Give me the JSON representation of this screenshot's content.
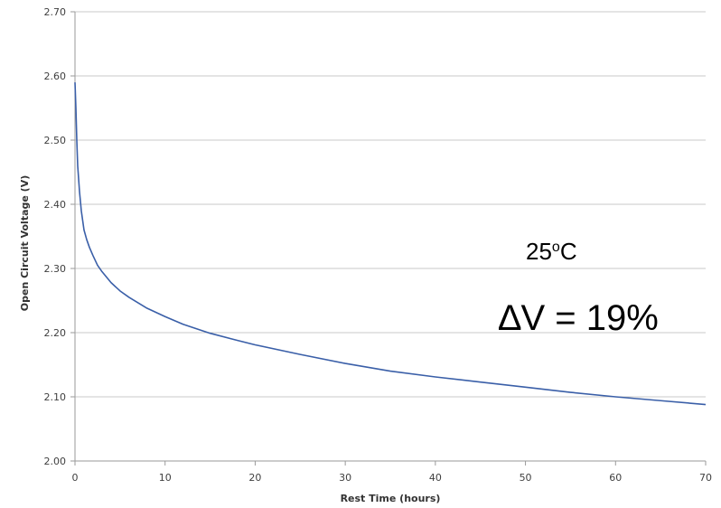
{
  "chart_data": {
    "type": "line",
    "title": "",
    "xlabel": "Rest Time (hours)",
    "ylabel": "Open Circuit Voltage (V)",
    "xlim": [
      0,
      70
    ],
    "ylim": [
      2.0,
      2.7
    ],
    "xticks": [
      "0",
      "10",
      "20",
      "30",
      "40",
      "50",
      "60",
      "70"
    ],
    "yticks": [
      "2.00",
      "2.10",
      "2.20",
      "2.30",
      "2.40",
      "2.50",
      "2.60",
      "2.70"
    ],
    "grid": "horizontal",
    "annotations": {
      "temperature": {
        "base": "25",
        "sup": "o",
        "unit": "C"
      },
      "delta": "∆V = 19%"
    },
    "series": [
      {
        "color": "#3a5fa8",
        "x": [
          0.0,
          0.1,
          0.2,
          0.3,
          0.5,
          0.7,
          1.0,
          1.3,
          1.6,
          2.0,
          2.5,
          3.0,
          4.0,
          5.0,
          6.0,
          8.0,
          10.0,
          12.0,
          15.0,
          18.0,
          20.0,
          25.0,
          30.0,
          35.0,
          40.0,
          45.0,
          50.0,
          55.0,
          60.0,
          65.0,
          70.0
        ],
        "y": [
          2.59,
          2.55,
          2.5,
          2.46,
          2.42,
          2.39,
          2.36,
          2.345,
          2.333,
          2.32,
          2.305,
          2.295,
          2.278,
          2.265,
          2.255,
          2.238,
          2.225,
          2.213,
          2.199,
          2.188,
          2.181,
          2.166,
          2.152,
          2.14,
          2.131,
          2.123,
          2.115,
          2.107,
          2.1,
          2.094,
          2.088
        ]
      }
    ]
  }
}
